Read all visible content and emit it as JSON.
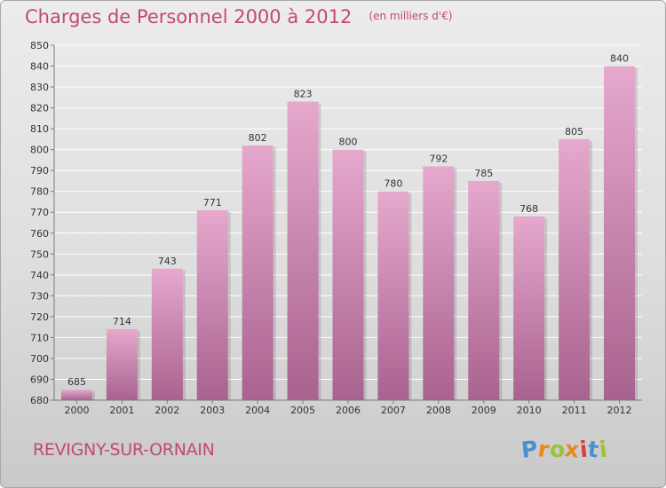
{
  "header": {
    "title": "Charges de Personnel 2000 à 2012",
    "subtitle": "(en milliers d'€)"
  },
  "footer": {
    "commune": "REVIGNY-SUR-ORNAIN",
    "logo_text": "Proxiti"
  },
  "colors": {
    "title": "#c2477a",
    "bar_top": "#e6a8cd",
    "bar_bottom": "#a8628f",
    "logo_letters": [
      "#4c8fd0",
      "#e8891c",
      "#9ac23c",
      "#e8891c",
      "#d93f3f",
      "#4c8fd0",
      "#9ac23c"
    ]
  },
  "chart_data": {
    "type": "bar",
    "categories": [
      "2000",
      "2001",
      "2002",
      "2003",
      "2004",
      "2005",
      "2006",
      "2007",
      "2008",
      "2009",
      "2010",
      "2011",
      "2012"
    ],
    "values": [
      685,
      714,
      743,
      771,
      802,
      823,
      800,
      780,
      792,
      785,
      768,
      805,
      840
    ],
    "ylim": [
      680,
      850
    ],
    "ytick_step": 10,
    "grid": true,
    "legend": "none"
  }
}
